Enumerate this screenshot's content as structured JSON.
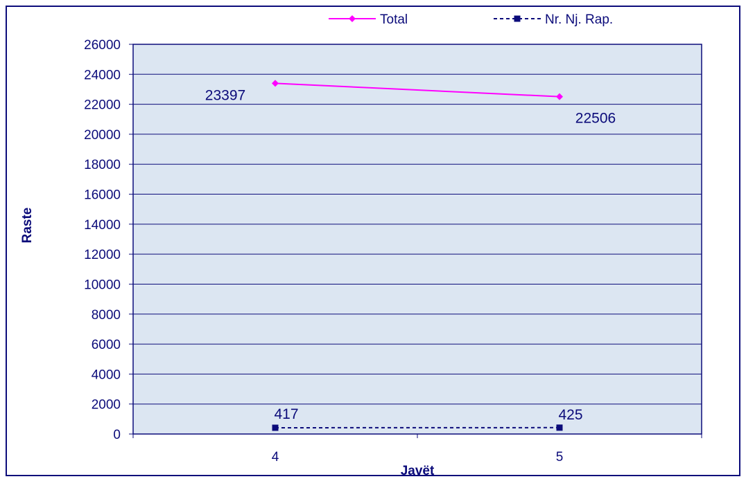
{
  "chart_data": {
    "type": "line",
    "xlabel": "Javët",
    "ylabel": "Raste",
    "categories": [
      "4",
      "5"
    ],
    "ylim": [
      0,
      26000
    ],
    "ytick_step": 2000,
    "grid": true,
    "legend_position": "top",
    "plot_background": "#dce6f2",
    "series": [
      {
        "name": "Total",
        "values": [
          23397,
          22506
        ],
        "labels": [
          "23397",
          "22506"
        ],
        "color": "#ff00ff",
        "line_style": "solid",
        "marker": "diamond"
      },
      {
        "name": "Nr. Nj. Rap.",
        "values": [
          417,
          425
        ],
        "labels": [
          "417",
          "425"
        ],
        "color": "#0b0b7a",
        "line_style": "dashed",
        "marker": "square"
      }
    ]
  }
}
